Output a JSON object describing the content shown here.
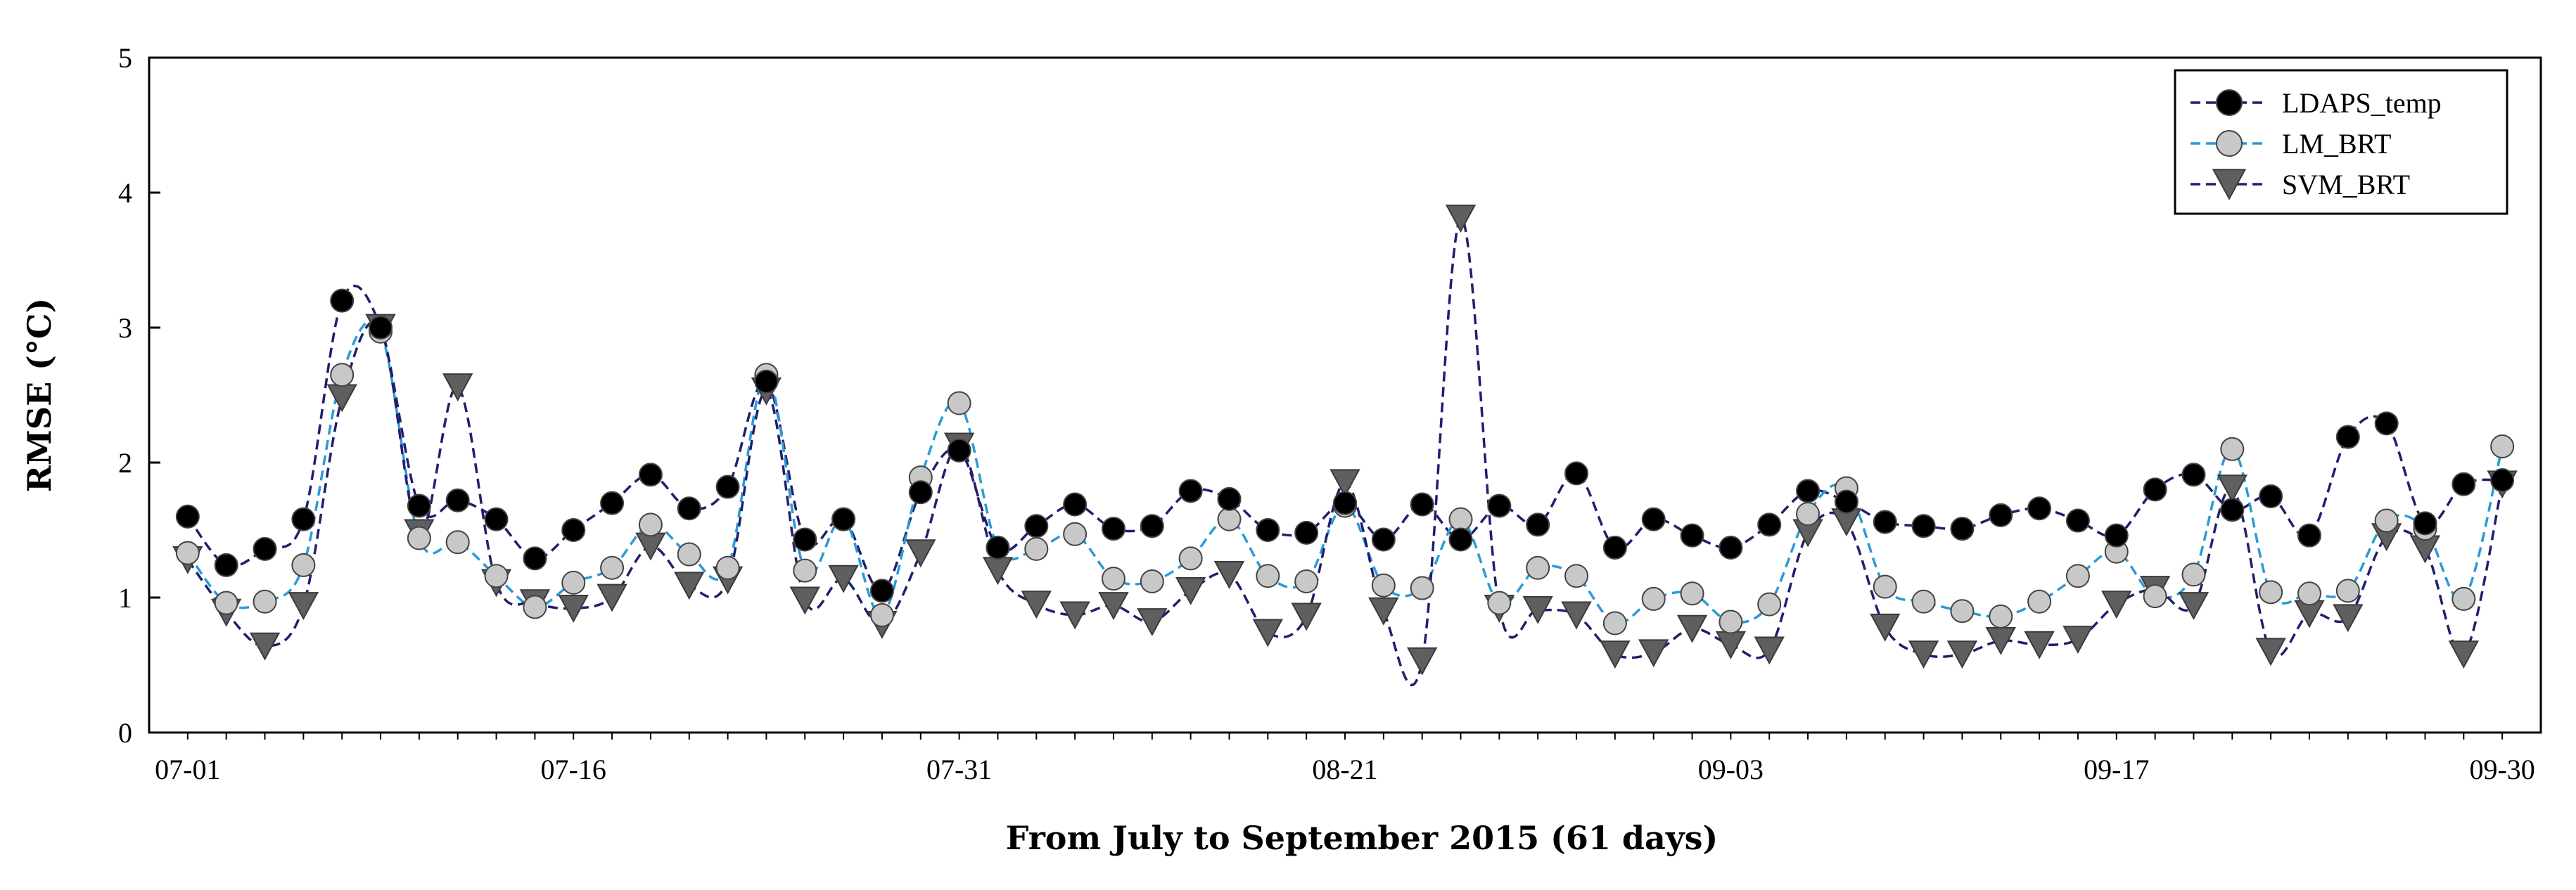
{
  "chart_data": {
    "type": "line",
    "title": "",
    "xlabel": "From July to September 2015 (61 days)",
    "ylabel": "RMSE (°C)",
    "ylim": [
      0,
      5
    ],
    "yticks": [
      "0",
      "1",
      "2",
      "3",
      "4",
      "5"
    ],
    "xtick_labels": [
      {
        "day": 1,
        "label": "07-01"
      },
      {
        "day": 11,
        "label": "07-16"
      },
      {
        "day": 21,
        "label": "07-31"
      },
      {
        "day": 31,
        "label": "08-21"
      },
      {
        "day": 41,
        "label": "09-03"
      },
      {
        "day": 51,
        "label": "09-17"
      },
      {
        "day": 61,
        "label": "09-30"
      }
    ],
    "x": [
      1,
      2,
      3,
      4,
      5,
      6,
      7,
      8,
      9,
      10,
      11,
      12,
      13,
      14,
      15,
      16,
      17,
      18,
      19,
      20,
      21,
      22,
      23,
      24,
      25,
      26,
      27,
      28,
      29,
      30,
      31,
      32,
      33,
      34,
      35,
      36,
      37,
      38,
      39,
      40,
      41,
      42,
      43,
      44,
      45,
      46,
      47,
      48,
      49,
      50,
      51,
      52,
      53,
      54,
      55,
      56,
      57,
      58,
      59,
      60,
      61
    ],
    "legend_position": "top-right",
    "series": [
      {
        "name": "LDAPS_temp",
        "marker": "circle",
        "color": "#000000",
        "line_color": "#1f1f6e",
        "values": [
          1.6,
          1.24,
          1.36,
          1.58,
          3.2,
          3.0,
          1.68,
          1.72,
          1.58,
          1.29,
          1.5,
          1.7,
          1.91,
          1.66,
          1.82,
          2.6,
          1.43,
          1.58,
          1.05,
          1.78,
          2.09,
          1.37,
          1.53,
          1.69,
          1.51,
          1.53,
          1.79,
          1.73,
          1.5,
          1.48,
          1.7,
          1.43,
          1.69,
          1.43,
          1.68,
          1.54,
          1.92,
          1.37,
          1.58,
          1.46,
          1.37,
          1.54,
          1.79,
          1.71,
          1.56,
          1.53,
          1.51,
          1.61,
          1.66,
          1.57,
          1.46,
          1.8,
          1.91,
          1.65,
          1.75,
          1.46,
          2.19,
          2.29,
          1.55,
          1.84,
          1.87
        ]
      },
      {
        "name": "LM_BRT",
        "marker": "circle",
        "color": "#c8c8c8",
        "line_color": "#2a9ad8",
        "values": [
          1.33,
          0.96,
          0.97,
          1.24,
          2.65,
          2.97,
          1.44,
          1.41,
          1.16,
          0.93,
          1.11,
          1.22,
          1.54,
          1.32,
          1.22,
          2.65,
          1.2,
          1.58,
          0.87,
          1.89,
          2.44,
          1.37,
          1.36,
          1.47,
          1.14,
          1.12,
          1.29,
          1.58,
          1.16,
          1.12,
          1.68,
          1.09,
          1.07,
          1.58,
          0.96,
          1.22,
          1.16,
          0.81,
          0.99,
          1.03,
          0.82,
          0.95,
          1.62,
          1.81,
          1.08,
          0.97,
          0.9,
          0.86,
          0.97,
          1.16,
          1.34,
          1.01,
          1.17,
          2.1,
          1.04,
          1.03,
          1.05,
          1.57,
          1.51,
          0.99,
          2.12
        ]
      },
      {
        "name": "SVM_BRT",
        "marker": "triangle-down",
        "color": "#5f5f5f",
        "line_color": "#1f1f6e",
        "values": [
          1.28,
          0.89,
          0.64,
          0.94,
          2.48,
          3.0,
          1.48,
          2.56,
          1.11,
          0.96,
          0.92,
          1.0,
          1.38,
          1.09,
          1.13,
          2.53,
          0.98,
          1.14,
          0.8,
          1.33,
          2.12,
          1.2,
          0.95,
          0.87,
          0.94,
          0.82,
          1.05,
          1.17,
          0.74,
          0.86,
          1.85,
          0.9,
          0.53,
          3.81,
          0.92,
          0.91,
          0.87,
          0.58,
          0.59,
          0.77,
          0.65,
          0.61,
          1.48,
          1.56,
          0.78,
          0.58,
          0.58,
          0.68,
          0.65,
          0.69,
          0.95,
          1.06,
          0.94,
          1.81,
          0.6,
          0.88,
          0.85,
          1.45,
          1.36,
          0.58,
          1.84
        ]
      }
    ]
  }
}
